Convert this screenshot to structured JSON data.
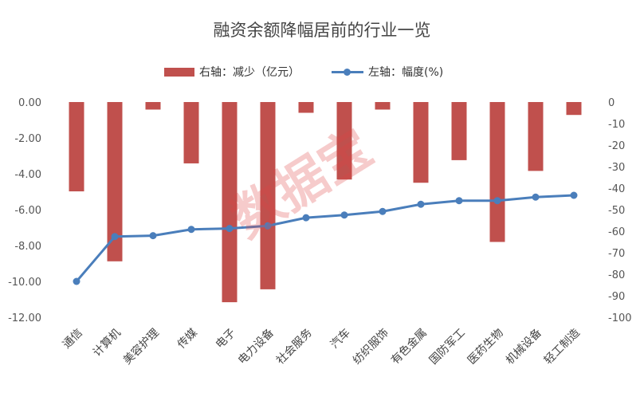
{
  "chart_data": {
    "type": "bar",
    "title": "融资余额降幅居前的行业一览",
    "categories": [
      "通信",
      "计算机",
      "美容护理",
      "传媒",
      "电子",
      "电力设备",
      "社会服务",
      "汽车",
      "纺织服饰",
      "有色金属",
      "国防军工",
      "医药生物",
      "机械设备",
      "轻工制造"
    ],
    "series": [
      {
        "name": "右轴：减少（亿元）",
        "type": "bar",
        "axis": "right",
        "color": "#c0504d",
        "values": [
          -41.5,
          -74,
          -3.5,
          -28.5,
          -93,
          -87,
          -5,
          -36,
          -3.5,
          -37.5,
          -27,
          -65,
          -32,
          -6
        ]
      },
      {
        "name": "左轴：幅度(%)",
        "type": "line",
        "axis": "left",
        "color": "#4a7ebb",
        "values": [
          -10.0,
          -7.5,
          -7.45,
          -7.1,
          -7.05,
          -6.9,
          -6.45,
          -6.3,
          -6.1,
          -5.7,
          -5.5,
          -5.5,
          -5.3,
          -5.2
        ]
      }
    ],
    "left_axis": {
      "ylim": [
        -12,
        0
      ],
      "ticks": [
        "0.00",
        "-2.00",
        "-4.00",
        "-6.00",
        "-8.00",
        "-10.00",
        "-12.00"
      ],
      "tick_values": [
        0,
        -2,
        -4,
        -6,
        -8,
        -10,
        -12
      ]
    },
    "right_axis": {
      "ylim": [
        -100,
        0
      ],
      "ticks": [
        "0",
        "-10",
        "-20",
        "-30",
        "-40",
        "-50",
        "-60",
        "-70",
        "-80",
        "-90",
        "-100"
      ],
      "tick_values": [
        0,
        -10,
        -20,
        -30,
        -40,
        -50,
        -60,
        -70,
        -80,
        -90,
        -100
      ]
    },
    "legend": [
      "右轴：减少（亿元）",
      "左轴：幅度(%)"
    ],
    "legend_position": "top",
    "watermark": "数据宝",
    "grid": false
  }
}
